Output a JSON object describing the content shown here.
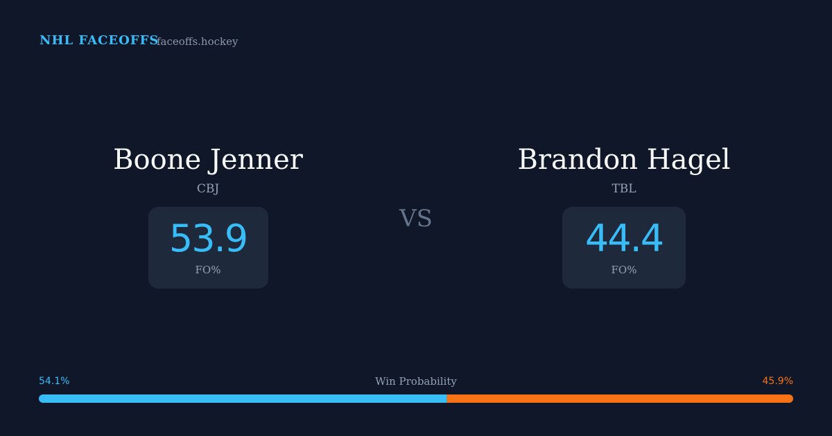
{
  "header": {
    "title": "NHL FACEOFFS",
    "site": "faceoffs.hockey"
  },
  "players": [
    {
      "name": "Boone Jenner",
      "team": "CBJ",
      "fo_pct": 53.9,
      "fo_label": "FO%"
    },
    {
      "name": "Brandon Hagel",
      "team": "TBL",
      "fo_pct": 44.4,
      "fo_label": "FO%"
    }
  ],
  "vs": "VS",
  "win_probability": {
    "title": "Win Probability",
    "values": [
      {
        "value": 54.1,
        "label": "54.1%"
      },
      {
        "value": 45.9,
        "label": "45.9%"
      }
    ],
    "colors": [
      "#38bdf8",
      "#f97316"
    ]
  }
}
